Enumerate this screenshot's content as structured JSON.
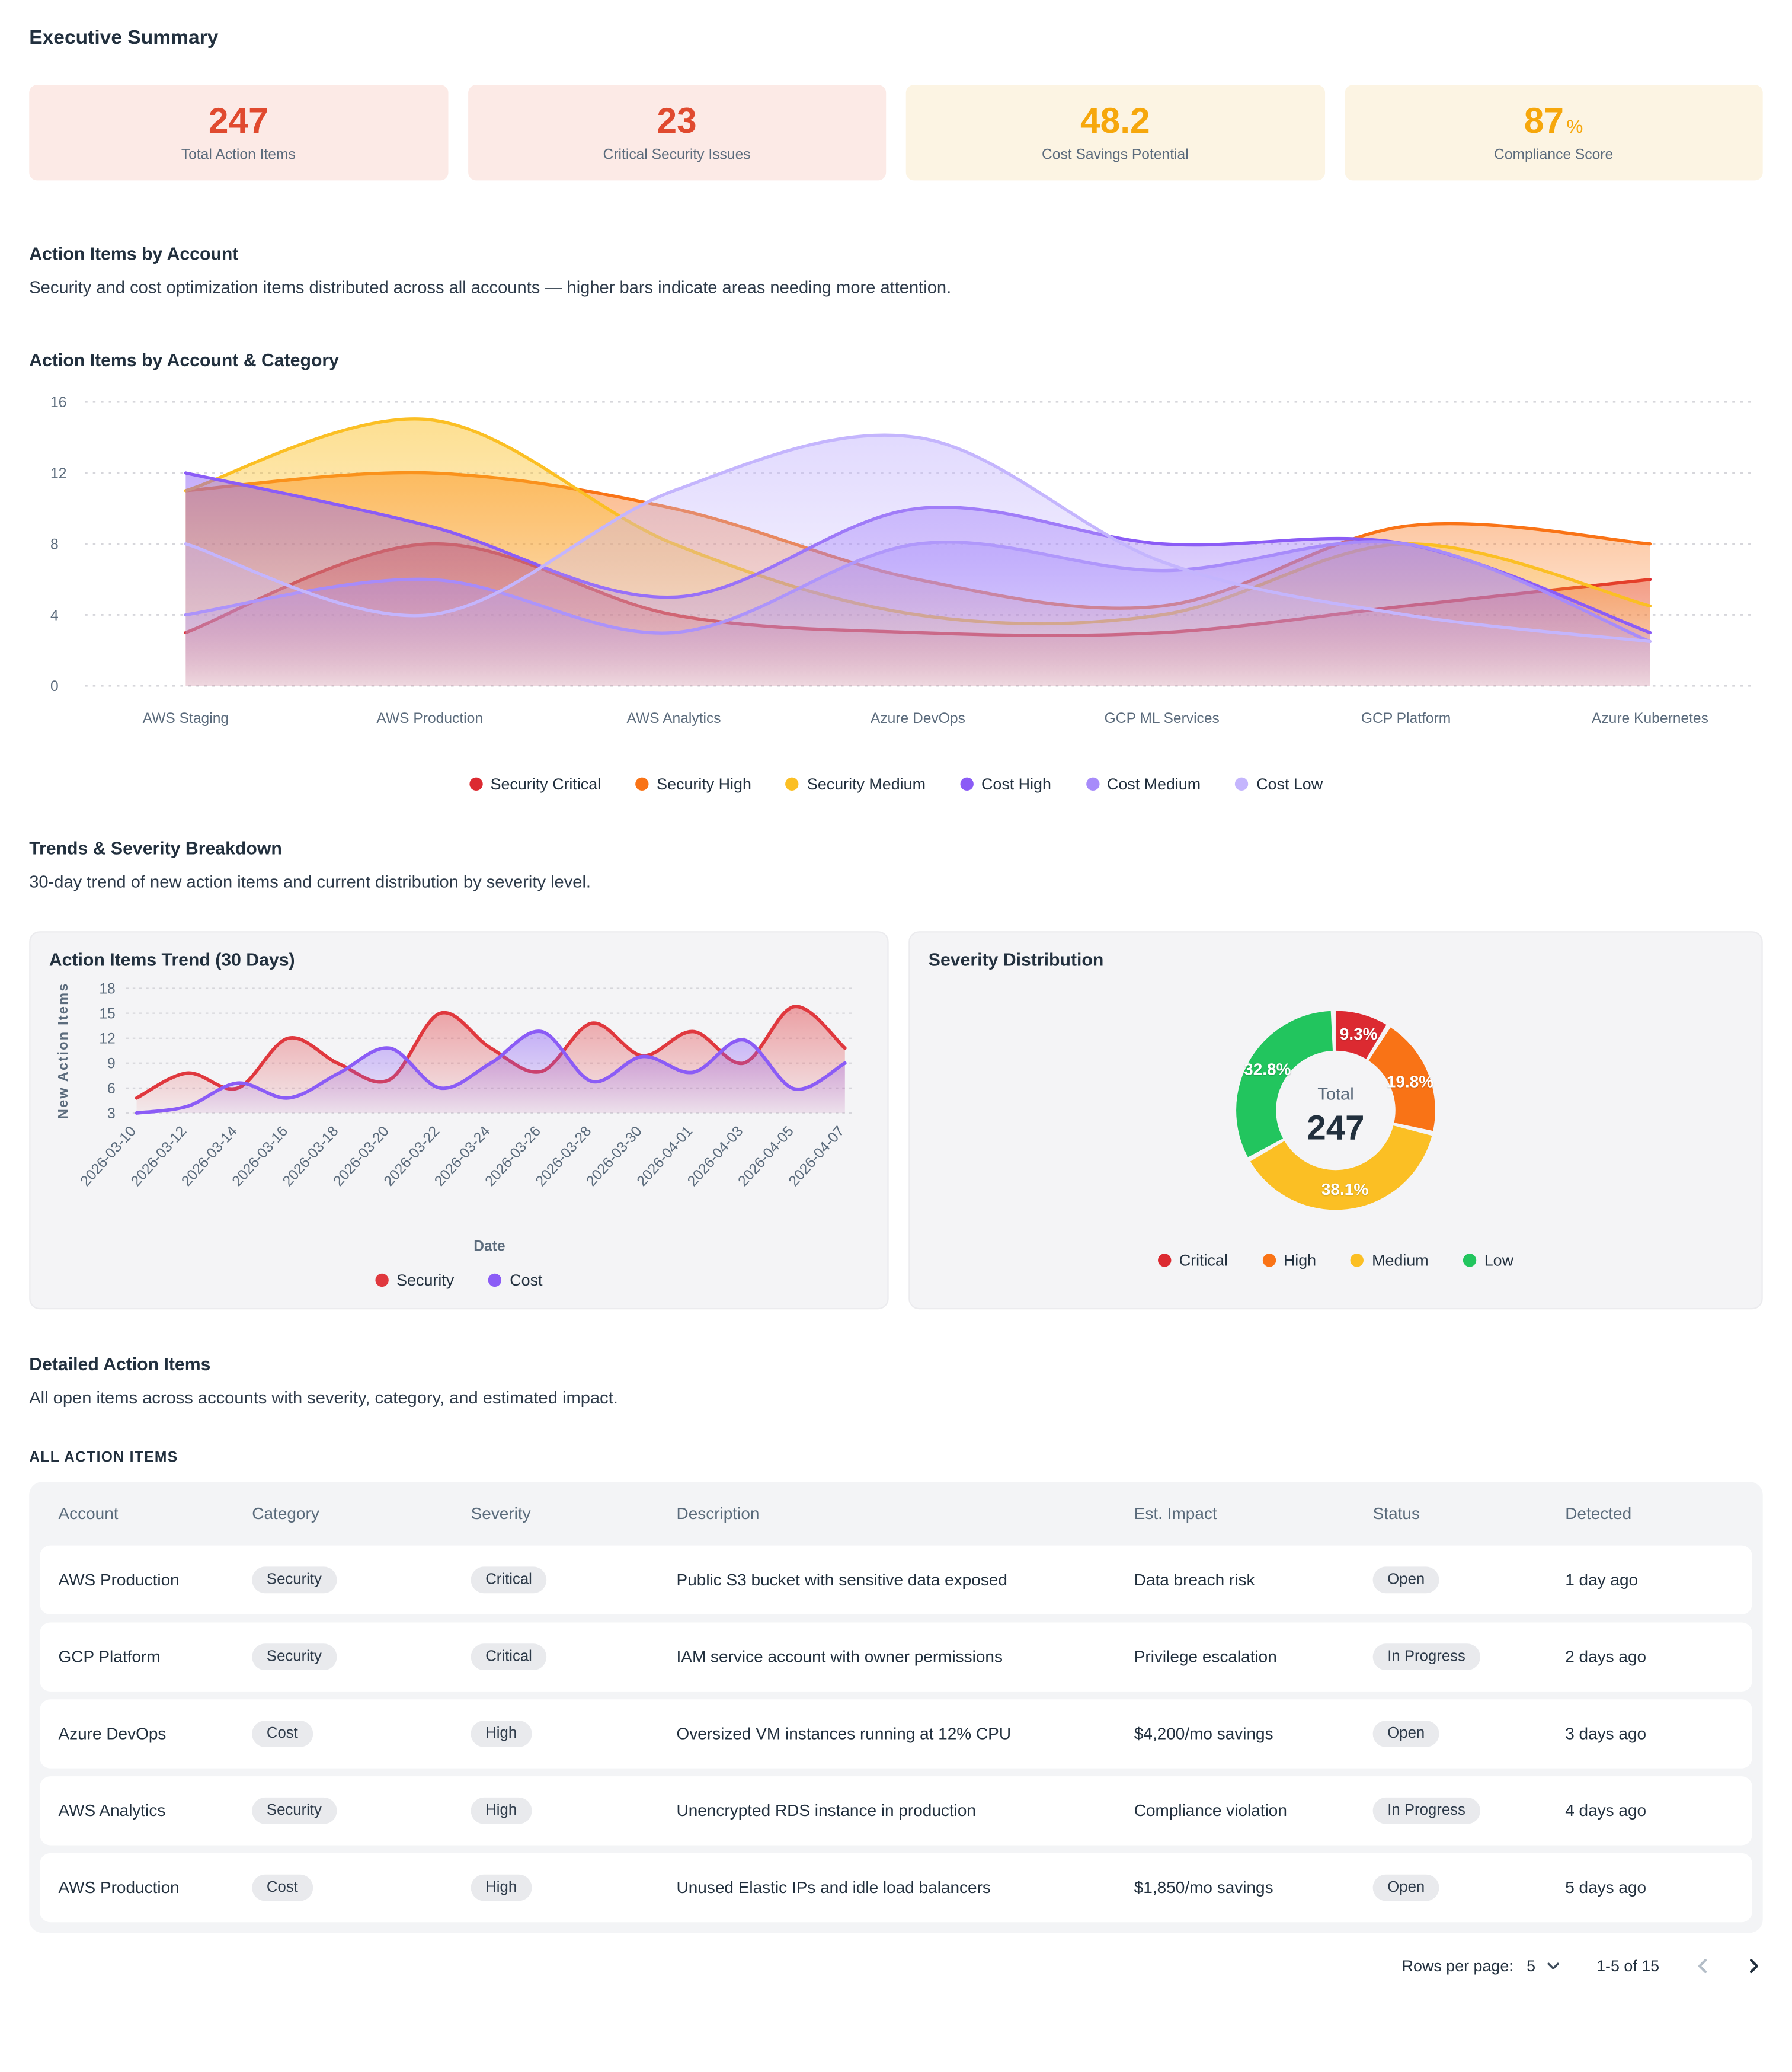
{
  "page": {
    "title": "Executive Summary"
  },
  "summary_cards": [
    {
      "value": "247",
      "suffix": "",
      "label": "Total Action Items",
      "theme": "red",
      "value_color": "#E04A2F",
      "bg": "#FCEAE6"
    },
    {
      "value": "23",
      "suffix": "",
      "label": "Critical Security Issues",
      "theme": "red",
      "value_color": "#E04A2F",
      "bg": "#FCEAE6"
    },
    {
      "value": "48.2",
      "suffix": "",
      "label": "Cost Savings Potential",
      "theme": "orange",
      "value_color": "#F6A70C",
      "bg": "#FCF4E3"
    },
    {
      "value": "87",
      "suffix": "%",
      "label": "Compliance Score",
      "theme": "orange",
      "value_color": "#F6A70C",
      "bg": "#FCF4E3"
    }
  ],
  "sections": {
    "by_account": {
      "title": "Action Items by Account",
      "description": "Security and cost optimization items distributed across all accounts — higher bars indicate areas needing more attention."
    },
    "trends": {
      "title": "Trends & Severity Breakdown",
      "description": "30-day trend of new action items and current distribution by severity level."
    },
    "detailed": {
      "title": "Detailed Action Items",
      "description": "All open items across accounts with severity, category, and estimated impact."
    }
  },
  "chart_data": [
    {
      "type": "area",
      "title": "Action Items by Account & Category",
      "categories": [
        "AWS Staging",
        "AWS Production",
        "AWS Analytics",
        "Azure DevOps",
        "GCP ML Services",
        "GCP Platform",
        "Azure Kubernetes"
      ],
      "series": [
        {
          "name": "Security Critical",
          "color": "#DC2A31",
          "values": [
            3,
            8,
            4,
            3,
            3,
            4.5,
            6
          ]
        },
        {
          "name": "Security High",
          "color": "#F97316",
          "values": [
            11,
            12,
            10,
            6,
            4.5,
            9,
            8
          ]
        },
        {
          "name": "Security Medium",
          "color": "#FBBF24",
          "values": [
            11,
            15,
            8,
            4,
            4,
            8,
            4.5
          ]
        },
        {
          "name": "Cost High",
          "color": "#8B5CF6",
          "values": [
            12,
            9,
            5,
            10,
            8,
            8,
            3
          ]
        },
        {
          "name": "Cost Medium",
          "color": "#A78BFA",
          "values": [
            4,
            6,
            3,
            8,
            6.5,
            8,
            2.5
          ]
        },
        {
          "name": "Cost Low",
          "color": "#C4B5FD",
          "values": [
            8,
            4,
            11,
            14,
            7,
            4,
            2.5
          ]
        }
      ],
      "ylim": [
        0,
        16
      ],
      "yticks": [
        0,
        4,
        8,
        12,
        16
      ],
      "grid": "dotted horizontal",
      "legend_position": "bottom"
    },
    {
      "type": "line",
      "title": "Action Items Trend (30 Days)",
      "xlabel": "Date",
      "ylabel": "New Action Items",
      "x": [
        "2026-03-10",
        "2026-03-12",
        "2026-03-14",
        "2026-03-16",
        "2026-03-18",
        "2026-03-20",
        "2026-03-22",
        "2026-03-24",
        "2026-03-26",
        "2026-03-28",
        "2026-03-30",
        "2026-04-01",
        "2026-04-03",
        "2026-04-05",
        "2026-04-07"
      ],
      "series": [
        {
          "name": "Security",
          "color": "#E0383E",
          "values": [
            4.8,
            7.8,
            6,
            12,
            8.9,
            7,
            15,
            10.8,
            8,
            13.8,
            9.9,
            12.8,
            9,
            15.8,
            10.8
          ]
        },
        {
          "name": "Cost",
          "color": "#8B5CF6",
          "values": [
            3,
            3.8,
            6.6,
            4.8,
            7.8,
            10.8,
            6,
            9,
            12.8,
            6.8,
            9.8,
            7.9,
            11.8,
            5.9,
            9
          ]
        }
      ],
      "ylim": [
        3,
        18
      ],
      "yticks": [
        3,
        6,
        9,
        12,
        15,
        18
      ],
      "grid": "dotted horizontal",
      "legend_position": "bottom"
    },
    {
      "type": "pie",
      "title": "Severity Distribution",
      "center_label": "Total",
      "center_value": "247",
      "slices": [
        {
          "label": "Critical",
          "pct": 9.3,
          "color": "#DC2A31"
        },
        {
          "label": "High",
          "pct": 19.8,
          "color": "#F97316"
        },
        {
          "label": "Medium",
          "pct": 38.1,
          "color": "#FBBF24"
        },
        {
          "label": "Low",
          "pct": 32.8,
          "color": "#22C55E"
        }
      ],
      "legend_position": "bottom"
    }
  ],
  "table": {
    "section_label": "ALL ACTION ITEMS",
    "columns": [
      "Account",
      "Category",
      "Severity",
      "Description",
      "Est. Impact",
      "Status",
      "Detected"
    ],
    "rows": [
      {
        "account": "AWS Production",
        "category": "Security",
        "severity": "Critical",
        "description": "Public S3 bucket with sensitive data exposed",
        "impact": "Data breach risk",
        "status": "Open",
        "detected": "1 day ago"
      },
      {
        "account": "GCP Platform",
        "category": "Security",
        "severity": "Critical",
        "description": "IAM service account with owner permissions",
        "impact": "Privilege escalation",
        "status": "In Progress",
        "detected": "2 days ago"
      },
      {
        "account": "Azure DevOps",
        "category": "Cost",
        "severity": "High",
        "description": "Oversized VM instances running at 12% CPU",
        "impact": "$4,200/mo savings",
        "status": "Open",
        "detected": "3 days ago"
      },
      {
        "account": "AWS Analytics",
        "category": "Security",
        "severity": "High",
        "description": "Unencrypted RDS instance in production",
        "impact": "Compliance violation",
        "status": "In Progress",
        "detected": "4 days ago"
      },
      {
        "account": "AWS Production",
        "category": "Cost",
        "severity": "High",
        "description": "Unused Elastic IPs and idle load balancers",
        "impact": "$1,850/mo savings",
        "status": "Open",
        "detected": "5 days ago"
      }
    ]
  },
  "pagination": {
    "rows_per_page_label": "Rows per page:",
    "rows_per_page_value": "5",
    "range_label": "1-5 of 15",
    "prev_enabled": false,
    "next_enabled": true
  },
  "colors": {
    "kpi_red": "#E04A2F",
    "kpi_orange": "#F6A70C",
    "text_dark": "#22303E",
    "text_gray": "#5B6B7C",
    "panel_bg": "#F4F4F6",
    "badge_bg": "#E9EAED"
  }
}
